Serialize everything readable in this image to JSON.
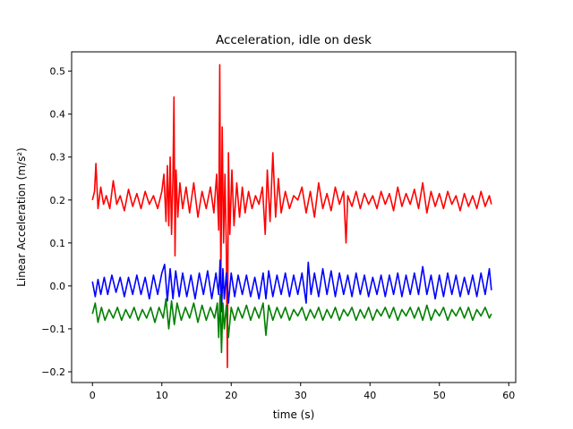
{
  "chart_data": {
    "type": "line",
    "title": "Acceleration, idle on desk",
    "xlabel": "time (s)",
    "ylabel": "Linear Acceleration (m/s²)",
    "xlim": [
      -3,
      61
    ],
    "ylim": [
      -0.225,
      0.545
    ],
    "x_ticks": [
      0,
      10,
      20,
      30,
      40,
      50,
      60
    ],
    "y_ticks": [
      -0.2,
      -0.1,
      0.0,
      0.1,
      0.2,
      0.3,
      0.4,
      0.5
    ],
    "x_tick_labels": [
      "0",
      "10",
      "20",
      "30",
      "40",
      "50",
      "60"
    ],
    "y_tick_labels": [
      "−0.2",
      "−0.1",
      "0.0",
      "0.1",
      "0.2",
      "0.3",
      "0.4",
      "0.5"
    ],
    "grid": false,
    "legend": "none",
    "series": [
      {
        "color": "#ff0000",
        "x": [
          0.0,
          0.3,
          0.5,
          0.8,
          1.2,
          1.6,
          2.0,
          2.5,
          3.0,
          3.5,
          4.0,
          4.6,
          5.2,
          5.8,
          6.4,
          7.0,
          7.6,
          8.2,
          8.8,
          9.4,
          10.0,
          10.3,
          10.6,
          10.8,
          11.0,
          11.2,
          11.4,
          11.6,
          11.75,
          11.9,
          12.05,
          12.3,
          12.6,
          13.0,
          13.5,
          14.0,
          14.6,
          15.2,
          15.8,
          16.4,
          17.0,
          17.5,
          17.9,
          18.2,
          18.35,
          18.5,
          18.7,
          18.9,
          19.1,
          19.3,
          19.45,
          19.6,
          19.8,
          20.1,
          20.4,
          20.8,
          21.2,
          21.6,
          22.0,
          22.5,
          23.0,
          23.5,
          24.0,
          24.5,
          24.9,
          25.2,
          25.6,
          26.0,
          26.4,
          26.8,
          27.2,
          27.8,
          28.4,
          29.0,
          29.6,
          30.2,
          30.8,
          31.4,
          32.0,
          32.6,
          33.2,
          33.8,
          34.4,
          35.0,
          35.6,
          36.2,
          36.55,
          36.8,
          37.4,
          38.0,
          38.6,
          39.2,
          39.8,
          40.4,
          41.0,
          41.6,
          42.2,
          42.8,
          43.4,
          44.0,
          44.6,
          45.2,
          45.8,
          46.4,
          47.0,
          47.6,
          48.2,
          48.8,
          49.4,
          50.0,
          50.6,
          51.2,
          51.8,
          52.4,
          53.0,
          53.6,
          54.2,
          54.8,
          55.4,
          56.0,
          56.6,
          57.2,
          57.5
        ],
        "values": [
          0.2,
          0.22,
          0.285,
          0.18,
          0.23,
          0.19,
          0.21,
          0.18,
          0.245,
          0.19,
          0.21,
          0.175,
          0.225,
          0.185,
          0.215,
          0.18,
          0.22,
          0.19,
          0.21,
          0.18,
          0.22,
          0.26,
          0.15,
          0.28,
          0.14,
          0.3,
          0.12,
          0.25,
          0.44,
          0.07,
          0.27,
          0.16,
          0.24,
          0.18,
          0.23,
          0.17,
          0.24,
          0.16,
          0.22,
          0.18,
          0.23,
          0.17,
          0.26,
          0.13,
          0.515,
          0.0,
          0.37,
          0.1,
          0.26,
          0.08,
          -0.19,
          0.31,
          0.12,
          0.27,
          0.14,
          0.24,
          0.16,
          0.23,
          0.17,
          0.22,
          0.18,
          0.21,
          0.19,
          0.23,
          0.12,
          0.27,
          0.15,
          0.31,
          0.16,
          0.25,
          0.17,
          0.22,
          0.18,
          0.21,
          0.2,
          0.23,
          0.17,
          0.22,
          0.16,
          0.24,
          0.18,
          0.215,
          0.175,
          0.23,
          0.19,
          0.22,
          0.1,
          0.21,
          0.185,
          0.22,
          0.18,
          0.215,
          0.19,
          0.21,
          0.18,
          0.22,
          0.19,
          0.215,
          0.175,
          0.23,
          0.185,
          0.215,
          0.19,
          0.225,
          0.18,
          0.24,
          0.17,
          0.22,
          0.185,
          0.215,
          0.18,
          0.22,
          0.19,
          0.21,
          0.175,
          0.215,
          0.185,
          0.21,
          0.18,
          0.22,
          0.185,
          0.21,
          0.19
        ]
      },
      {
        "color": "#0000ff",
        "x": [
          0.0,
          0.4,
          0.8,
          1.2,
          1.7,
          2.2,
          2.8,
          3.4,
          4.0,
          4.6,
          5.2,
          5.8,
          6.4,
          7.0,
          7.6,
          8.2,
          8.8,
          9.4,
          10.0,
          10.4,
          10.8,
          11.2,
          11.6,
          12.0,
          12.5,
          13.0,
          13.6,
          14.2,
          14.8,
          15.4,
          16.0,
          16.6,
          17.2,
          17.8,
          18.2,
          18.4,
          18.6,
          18.8,
          19.0,
          19.3,
          19.6,
          20.0,
          20.5,
          21.0,
          21.6,
          22.2,
          22.8,
          23.4,
          24.0,
          24.6,
          25.0,
          25.4,
          26.0,
          26.6,
          27.2,
          27.8,
          28.4,
          29.0,
          29.6,
          30.2,
          30.8,
          31.1,
          31.5,
          32.0,
          32.6,
          33.2,
          33.8,
          34.4,
          35.0,
          35.6,
          36.2,
          36.8,
          37.4,
          38.0,
          38.6,
          39.2,
          39.8,
          40.4,
          41.0,
          41.6,
          42.2,
          42.8,
          43.4,
          44.0,
          44.6,
          45.2,
          45.8,
          46.4,
          47.0,
          47.6,
          48.2,
          48.8,
          49.4,
          50.0,
          50.6,
          51.2,
          51.8,
          52.4,
          53.0,
          53.6,
          54.2,
          54.8,
          55.4,
          56.0,
          56.6,
          57.2,
          57.5
        ],
        "values": [
          0.01,
          -0.025,
          0.015,
          -0.02,
          0.02,
          -0.02,
          0.025,
          -0.015,
          0.02,
          -0.025,
          0.02,
          -0.02,
          0.025,
          -0.02,
          0.02,
          -0.03,
          0.025,
          -0.02,
          0.03,
          0.05,
          -0.035,
          0.04,
          -0.03,
          0.035,
          -0.025,
          0.03,
          -0.025,
          0.025,
          -0.03,
          0.03,
          -0.02,
          0.035,
          -0.03,
          0.03,
          -0.02,
          0.06,
          -0.06,
          0.04,
          -0.03,
          0.03,
          -0.04,
          0.03,
          -0.025,
          0.025,
          -0.02,
          0.025,
          -0.025,
          0.02,
          -0.03,
          0.03,
          -0.03,
          0.035,
          -0.025,
          0.025,
          -0.02,
          0.03,
          -0.025,
          0.025,
          -0.02,
          0.03,
          -0.04,
          0.055,
          -0.02,
          0.03,
          -0.025,
          0.04,
          -0.02,
          0.035,
          -0.025,
          0.03,
          -0.02,
          0.025,
          -0.025,
          0.03,
          -0.02,
          0.025,
          -0.025,
          0.02,
          -0.02,
          0.025,
          -0.025,
          0.025,
          -0.02,
          0.03,
          -0.025,
          0.025,
          -0.02,
          0.03,
          -0.02,
          0.045,
          -0.02,
          0.025,
          -0.03,
          0.025,
          -0.025,
          0.03,
          -0.02,
          0.025,
          -0.025,
          0.02,
          -0.02,
          0.025,
          -0.025,
          0.03,
          -0.02,
          0.04,
          -0.01
        ]
      },
      {
        "color": "#008000",
        "x": [
          0.0,
          0.4,
          0.8,
          1.3,
          1.8,
          2.4,
          3.0,
          3.6,
          4.2,
          4.8,
          5.4,
          6.0,
          6.6,
          7.2,
          7.8,
          8.4,
          9.0,
          9.6,
          10.2,
          10.6,
          11.0,
          11.4,
          11.8,
          12.2,
          12.8,
          13.4,
          14.0,
          14.6,
          15.2,
          15.8,
          16.4,
          17.0,
          17.6,
          18.0,
          18.2,
          18.4,
          18.6,
          18.8,
          19.0,
          19.3,
          19.6,
          20.0,
          20.5,
          21.0,
          21.6,
          22.2,
          22.8,
          23.4,
          24.0,
          24.6,
          25.0,
          25.4,
          26.0,
          26.6,
          27.2,
          27.8,
          28.4,
          29.0,
          29.6,
          30.2,
          30.8,
          31.4,
          32.0,
          32.6,
          33.2,
          33.8,
          34.4,
          35.0,
          35.6,
          36.2,
          36.8,
          37.4,
          38.0,
          38.6,
          39.2,
          39.8,
          40.4,
          41.0,
          41.6,
          42.2,
          42.8,
          43.4,
          44.0,
          44.6,
          45.2,
          45.8,
          46.4,
          47.0,
          47.6,
          48.2,
          48.8,
          49.4,
          50.0,
          50.6,
          51.2,
          51.8,
          52.4,
          53.0,
          53.6,
          54.2,
          54.8,
          55.4,
          56.0,
          56.6,
          57.2,
          57.5
        ],
        "values": [
          -0.065,
          -0.04,
          -0.085,
          -0.05,
          -0.08,
          -0.055,
          -0.075,
          -0.05,
          -0.08,
          -0.055,
          -0.075,
          -0.05,
          -0.08,
          -0.055,
          -0.075,
          -0.05,
          -0.085,
          -0.05,
          -0.075,
          -0.03,
          -0.1,
          -0.035,
          -0.09,
          -0.04,
          -0.08,
          -0.05,
          -0.075,
          -0.04,
          -0.085,
          -0.045,
          -0.08,
          -0.05,
          -0.075,
          -0.04,
          -0.12,
          -0.02,
          -0.155,
          -0.04,
          -0.1,
          -0.045,
          -0.12,
          -0.05,
          -0.08,
          -0.05,
          -0.075,
          -0.045,
          -0.08,
          -0.05,
          -0.075,
          -0.04,
          -0.115,
          -0.045,
          -0.08,
          -0.05,
          -0.075,
          -0.05,
          -0.08,
          -0.055,
          -0.07,
          -0.05,
          -0.08,
          -0.055,
          -0.075,
          -0.05,
          -0.08,
          -0.055,
          -0.075,
          -0.05,
          -0.08,
          -0.055,
          -0.07,
          -0.05,
          -0.08,
          -0.055,
          -0.075,
          -0.05,
          -0.08,
          -0.055,
          -0.07,
          -0.05,
          -0.075,
          -0.05,
          -0.08,
          -0.055,
          -0.07,
          -0.05,
          -0.075,
          -0.05,
          -0.08,
          -0.045,
          -0.08,
          -0.055,
          -0.07,
          -0.05,
          -0.08,
          -0.055,
          -0.07,
          -0.05,
          -0.075,
          -0.05,
          -0.08,
          -0.055,
          -0.07,
          -0.05,
          -0.075,
          -0.065
        ]
      }
    ]
  }
}
